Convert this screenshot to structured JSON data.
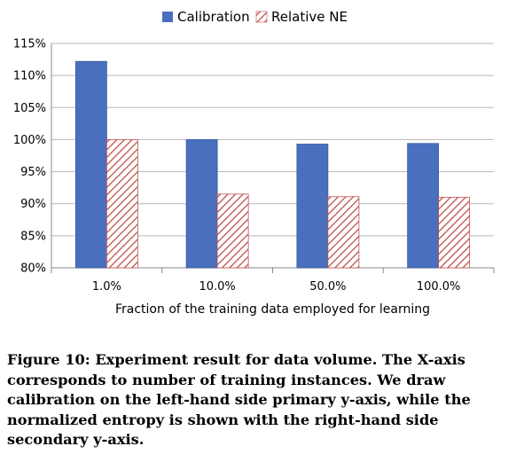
{
  "chart_data": {
    "type": "bar",
    "categories": [
      "1.0%",
      "10.0%",
      "50.0%",
      "100.0%"
    ],
    "series": [
      {
        "name": "Calibration",
        "values": [
          112.2,
          100.0,
          99.3,
          99.4
        ],
        "color": "#4a6fbf",
        "pattern": "solid"
      },
      {
        "name": "Relative NE",
        "values": [
          100.0,
          91.5,
          91.1,
          91.0
        ],
        "color": "#c0504d",
        "pattern": "diagonal-hatch"
      }
    ],
    "title": "",
    "xlabel": "Fraction of the training data employed for learning",
    "ylabel": "",
    "ylim": [
      80,
      115
    ],
    "yticks": [
      "80%",
      "85%",
      "90%",
      "95%",
      "100%",
      "105%",
      "110%",
      "115%"
    ],
    "grid": true,
    "legend_position": "top"
  },
  "caption": "Figure 10: Experiment result for data volume. The X-axis corresponds to number of training instances. We draw calibration on the left-hand side primary y-axis, while the normalized entropy is shown with the right-hand side secondary y-axis."
}
